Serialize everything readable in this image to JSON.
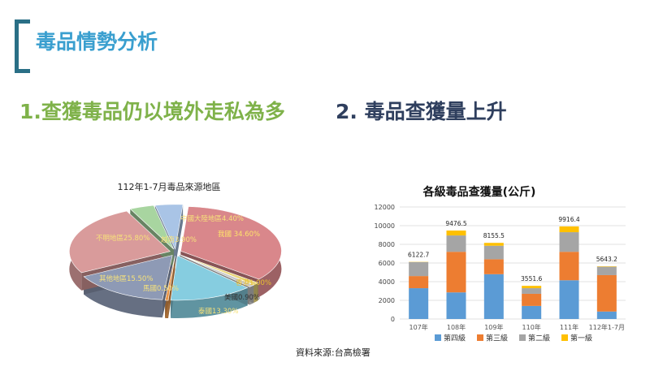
{
  "slide": {
    "title": "毒品情勢分析",
    "heading_1": "1.查獲毒品仍以境外走私為多",
    "heading_2": "2. 毒品查獲量上升",
    "source": "資料來源:台高檢署"
  },
  "colors": {
    "title_blue": "#3a9fcf",
    "heading_green": "#7fb24a",
    "heading_navy": "#2f3f5e",
    "bracket": "#2a6f86"
  },
  "chart_data": [
    {
      "type": "pie",
      "title": "112年1-7月毒品來源地區",
      "labels": [
        "中國大陸地區",
        "我國",
        "香港",
        "美國",
        "泰國",
        "馬國",
        "其他地區",
        "不明地區",
        "越南"
      ],
      "label_texts": [
        "中國大陸地區4.40%",
        "我國 34.60%",
        "香港1.00%",
        "美國0.90%",
        "泰國13.30%",
        "馬國0.50%",
        "其他地區15.50%",
        "不明地區25.80%",
        "越南3.90%"
      ],
      "values": [
        4.4,
        34.6,
        1.0,
        0.9,
        13.3,
        0.5,
        15.5,
        25.8,
        3.9
      ],
      "colors": [
        "#a9c4e6",
        "#d9878b",
        "#e9d67a",
        "#c8c8c8",
        "#86cde0",
        "#e8964a",
        "#8e9ab5",
        "#d99b9b",
        "#a8d5a0"
      ],
      "style": "3d-exploded"
    },
    {
      "type": "bar",
      "stacked": true,
      "title": "各級毒品查獲量(公斤)",
      "categories": [
        "107年",
        "108年",
        "109年",
        "110年",
        "111年",
        "112年1-7月"
      ],
      "totals": [
        6122.7,
        9476.5,
        8155.5,
        3551.6,
        9916.4,
        5643.2
      ],
      "series": [
        {
          "name": "第四級",
          "color": "#5b9bd5",
          "values": [
            3300,
            2850,
            4800,
            1400,
            4150,
            800
          ]
        },
        {
          "name": "第三級",
          "color": "#ed7d31",
          "values": [
            1300,
            4350,
            1600,
            1300,
            3050,
            3900
          ]
        },
        {
          "name": "第二級",
          "color": "#a5a5a5",
          "values": [
            1500,
            1750,
            1450,
            600,
            2100,
            900
          ]
        },
        {
          "name": "第一級",
          "color": "#ffc000",
          "values": [
            22.7,
            526.5,
            305.5,
            251.6,
            616.4,
            43.2
          ]
        }
      ],
      "yticks": [
        "0",
        "2000",
        "4000",
        "6000",
        "8000",
        "10000",
        "12000"
      ],
      "ylim": [
        0,
        12000
      ],
      "grid": true,
      "legend": "bottom"
    }
  ]
}
